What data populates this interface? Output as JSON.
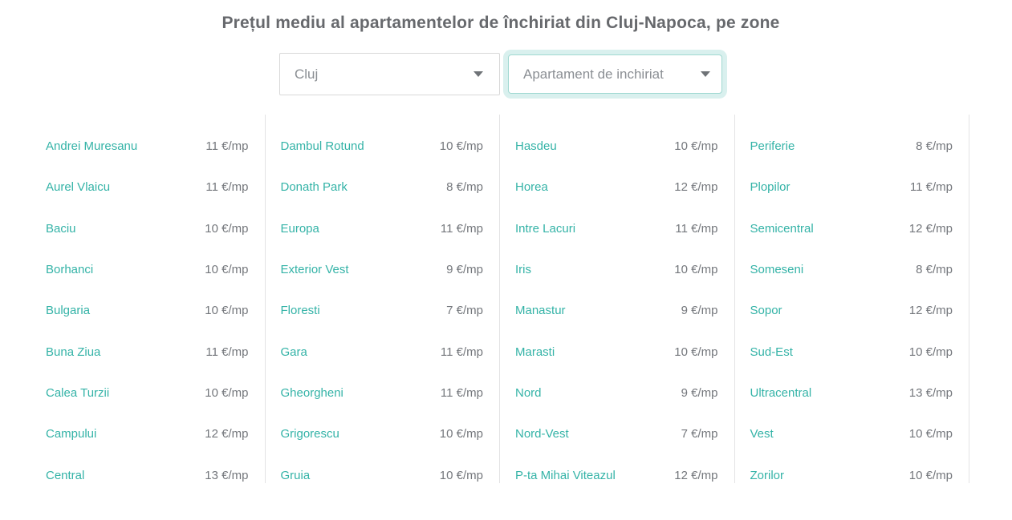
{
  "title": "Prețul mediu al apartamentelor de închiriat din Cluj-Napoca, pe zone",
  "filters": {
    "location": "Cluj",
    "property_type": "Apartament de inchiriat"
  },
  "price_unit": "€/mp",
  "columns": [
    {
      "items": [
        {
          "zone": "Andrei Muresanu",
          "price": "11 €/mp"
        },
        {
          "zone": "Aurel Vlaicu",
          "price": "11 €/mp"
        },
        {
          "zone": "Baciu",
          "price": "10 €/mp"
        },
        {
          "zone": "Borhanci",
          "price": "10 €/mp"
        },
        {
          "zone": "Bulgaria",
          "price": "10 €/mp"
        },
        {
          "zone": "Buna Ziua",
          "price": "11 €/mp"
        },
        {
          "zone": "Calea Turzii",
          "price": "10 €/mp"
        },
        {
          "zone": "Campului",
          "price": "12 €/mp"
        },
        {
          "zone": "Central",
          "price": "13 €/mp"
        }
      ]
    },
    {
      "items": [
        {
          "zone": "Dambul Rotund",
          "price": "10 €/mp"
        },
        {
          "zone": "Donath Park",
          "price": "8 €/mp"
        },
        {
          "zone": "Europa",
          "price": "11 €/mp"
        },
        {
          "zone": "Exterior Vest",
          "price": "9 €/mp"
        },
        {
          "zone": "Floresti",
          "price": "7 €/mp"
        },
        {
          "zone": "Gara",
          "price": "11 €/mp"
        },
        {
          "zone": "Gheorgheni",
          "price": "11 €/mp"
        },
        {
          "zone": "Grigorescu",
          "price": "10 €/mp"
        },
        {
          "zone": "Gruia",
          "price": "10 €/mp"
        }
      ]
    },
    {
      "items": [
        {
          "zone": "Hasdeu",
          "price": "10 €/mp"
        },
        {
          "zone": "Horea",
          "price": "12 €/mp"
        },
        {
          "zone": "Intre Lacuri",
          "price": "11 €/mp"
        },
        {
          "zone": "Iris",
          "price": "10 €/mp"
        },
        {
          "zone": "Manastur",
          "price": "9 €/mp"
        },
        {
          "zone": "Marasti",
          "price": "10 €/mp"
        },
        {
          "zone": "Nord",
          "price": "9 €/mp"
        },
        {
          "zone": "Nord-Vest",
          "price": "7 €/mp"
        },
        {
          "zone": "P-ta Mihai Viteazul",
          "price": "12 €/mp"
        }
      ]
    },
    {
      "items": [
        {
          "zone": "Periferie",
          "price": "8 €/mp"
        },
        {
          "zone": "Plopilor",
          "price": "11 €/mp"
        },
        {
          "zone": "Semicentral",
          "price": "12 €/mp"
        },
        {
          "zone": "Someseni",
          "price": "8 €/mp"
        },
        {
          "zone": "Sopor",
          "price": "12 €/mp"
        },
        {
          "zone": "Sud-Est",
          "price": "10 €/mp"
        },
        {
          "zone": "Ultracentral",
          "price": "13 €/mp"
        },
        {
          "zone": "Vest",
          "price": "10 €/mp"
        },
        {
          "zone": "Zorilor",
          "price": "10 €/mp"
        }
      ]
    }
  ],
  "icons": {
    "dropdown_caret": "chevron-down"
  },
  "colors": {
    "accent_teal": "#34b3a7",
    "price_text_gray": "#74777c",
    "title_gray": "#67696d",
    "divider_gray": "#e3e3e4",
    "focus_ring_mint": "#d9f0ee",
    "focus_border_teal": "#9fd8d1",
    "select_border_gray": "#d8d8d8"
  }
}
